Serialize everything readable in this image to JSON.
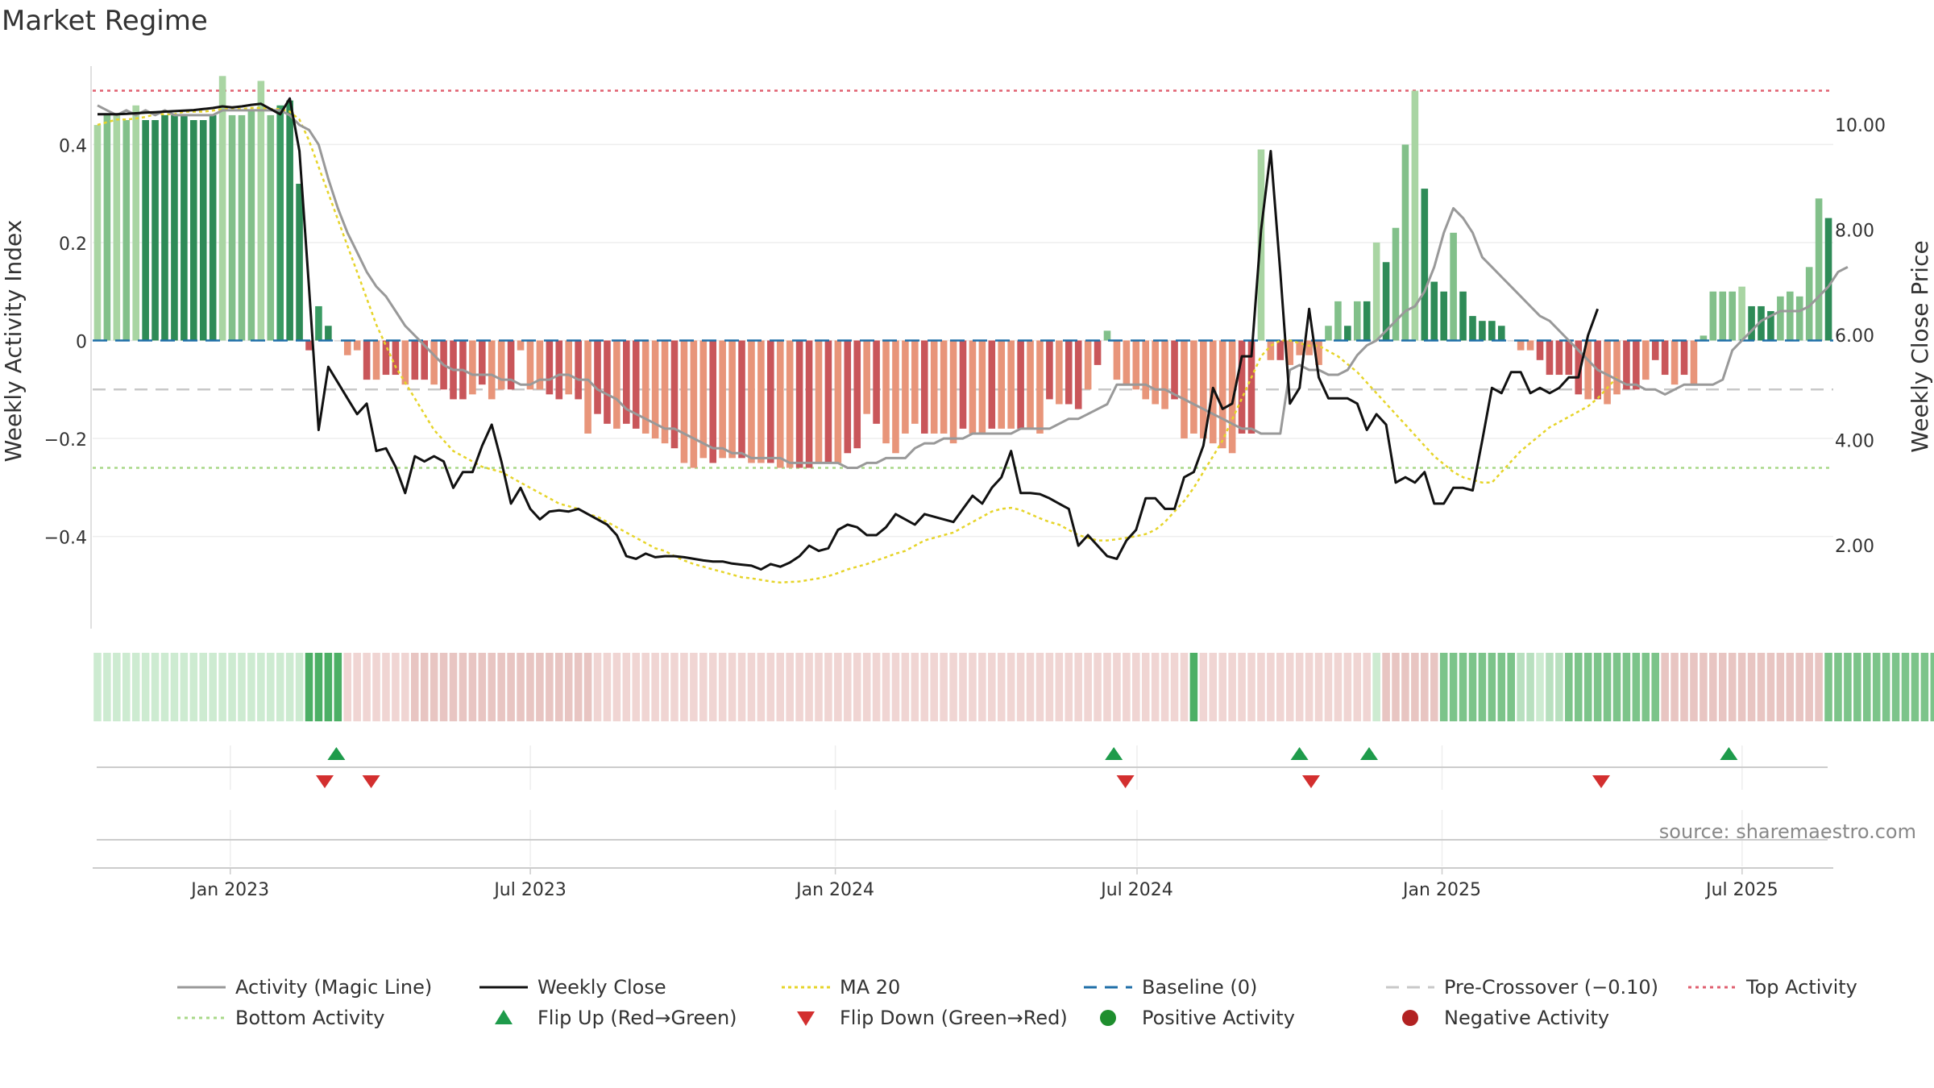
{
  "chart_data": {
    "title": "Market Regime",
    "type": "bar+line",
    "left_axis": {
      "label": "Weekly Activity Index",
      "range": [
        -0.58,
        0.58
      ],
      "ticks": [
        0.4,
        0.2,
        0,
        -0.2,
        -0.4
      ],
      "tick_labels": [
        "0.4",
        "0.2",
        "0",
        "−0.2",
        "−0.4"
      ]
    },
    "right_axis": {
      "label": "Weekly Close Price",
      "range": [
        0.5,
        11.3
      ],
      "ticks": [
        10,
        8,
        6,
        4,
        2
      ],
      "tick_labels": [
        "10.00",
        "8.00",
        "6.00",
        "4.00",
        "2.00"
      ]
    },
    "x_axis": {
      "start": "2022-10-10",
      "end": "2025-08-25",
      "ticks": [
        {
          "date": "2023-01-01",
          "label": "Jan 2023"
        },
        {
          "date": "2023-07-01",
          "label": "Jul 2023"
        },
        {
          "date": "2024-01-01",
          "label": "Jan 2024"
        },
        {
          "date": "2024-07-01",
          "label": "Jul 2024"
        },
        {
          "date": "2025-01-01",
          "label": "Jan 2025"
        },
        {
          "date": "2025-07-01",
          "label": "Jul 2025"
        }
      ]
    },
    "reference_lines": {
      "top_activity": 0.51,
      "bottom_activity": -0.26,
      "pre_crossover": -0.1,
      "baseline": 0
    },
    "activity_bars": [
      [
        0.44,
        0.46,
        0.46,
        0.45,
        0.48,
        0.45,
        0.45,
        0.46,
        0.46,
        0.46,
        0.45,
        0.45,
        0.46,
        0.54,
        0.46,
        0.46,
        0.47,
        0.53,
        0.46,
        0.48,
        0.49,
        0.32,
        -0.02,
        0.07,
        0.03,
        0,
        -0.03,
        -0.02,
        -0.08,
        -0.08,
        -0.07,
        -0.07,
        -0.09,
        -0.08,
        -0.08,
        -0.09,
        -0.1,
        -0.12,
        -0.12,
        -0.11,
        -0.09,
        -0.12,
        -0.1
      ],
      [
        -0.1,
        -0.02,
        -0.1,
        -0.1,
        -0.11,
        -0.12,
        -0.11,
        -0.12,
        -0.19,
        -0.15,
        -0.17,
        -0.18,
        -0.17,
        -0.18,
        -0.19,
        -0.2,
        -0.21,
        -0.22,
        -0.25,
        -0.26,
        -0.24,
        -0.25,
        -0.24,
        -0.24,
        -0.24,
        -0.25,
        -0.25,
        -0.25,
        -0.26,
        -0.26,
        -0.26,
        -0.26,
        -0.25,
        -0.25,
        -0.25,
        -0.23,
        -0.22,
        -0.15,
        -0.17,
        -0.21,
        -0.23,
        -0.19,
        -0.17,
        -0.19,
        -0.19,
        -0.19,
        -0.21,
        -0.18,
        -0.19,
        -0.19,
        -0.18,
        -0.18,
        -0.18,
        -0.18,
        -0.18,
        -0.19,
        -0.12,
        -0.13,
        -0.13,
        -0.14,
        -0.1,
        -0.05,
        0.02,
        -0.08,
        -0.09,
        -0.1,
        -0.12,
        -0.13,
        -0.14,
        -0.12,
        -0.2,
        -0.19,
        -0.2,
        -0.21,
        -0.22,
        -0.23,
        -0.19,
        -0.19,
        0.39
      ],
      [
        -0.04,
        -0.04,
        -0.05,
        -0.03,
        -0.03,
        -0.05,
        0.03,
        0.08,
        0.03,
        0.08,
        0.08,
        0.2,
        0.16,
        0.23,
        0.4,
        0.51,
        0.31,
        0.12,
        0.1,
        0.22,
        0.1,
        0.05,
        0.04,
        0.04,
        0.03,
        0,
        -0.02,
        -0.02,
        -0.04,
        -0.07,
        -0.07,
        -0.07,
        -0.11,
        -0.12,
        -0.12,
        -0.13,
        -0.11,
        -0.1,
        -0.1,
        -0.08,
        -0.04,
        -0.07,
        -0.09,
        -0.07,
        -0.09,
        0.01,
        0.1,
        0.1,
        0.1,
        0.11,
        0.07,
        0.07,
        0.06,
        0.09,
        0.1,
        0.09,
        0.15,
        0.29,
        0.25
      ]
    ],
    "bar_tone_classes": [
      [
        4,
        3,
        4,
        3,
        4,
        1,
        1,
        1,
        1,
        1,
        1,
        1,
        1,
        4,
        3,
        3,
        3,
        4,
        3,
        2,
        1,
        1,
        -1,
        2,
        1,
        0,
        -2,
        -2,
        -1,
        -2,
        -1,
        -1,
        -2,
        -1,
        -1,
        -2,
        -1,
        -1,
        -1,
        -2,
        -1,
        -2,
        -2
      ],
      [
        -1,
        -2,
        -2,
        -2,
        -1,
        -1,
        -2,
        -1,
        -2,
        -1,
        -1,
        -2,
        -1,
        -1,
        -2,
        -2,
        -2,
        -1,
        -2,
        -2,
        -2,
        -1,
        -2,
        -2,
        -1,
        -2,
        -2,
        -1,
        -2,
        -2,
        -1,
        -1,
        -2,
        -1,
        -2,
        -1,
        -1,
        -2,
        -1,
        -2,
        -2,
        -2,
        -2,
        -1,
        -2,
        -2,
        -2,
        -1,
        -2,
        -2,
        -1,
        -2,
        -2,
        -1,
        -2,
        -2,
        -1,
        -2,
        -1,
        -1,
        -2,
        -1,
        3,
        -2,
        -2,
        -2,
        -2,
        -2,
        -2,
        -1,
        -2,
        -2,
        -2,
        -2,
        -2,
        -2,
        -1,
        -1,
        4
      ],
      [
        -2,
        -1,
        -2,
        -2,
        -2,
        -2,
        3,
        3,
        1,
        3,
        1,
        4,
        1,
        3,
        3,
        4,
        1,
        1,
        1,
        3,
        1,
        1,
        1,
        1,
        1,
        0,
        -2,
        -2,
        -1,
        -1,
        -1,
        -1,
        -1,
        -2,
        -1,
        -2,
        -2,
        -1,
        -1,
        -2,
        -1,
        -1,
        -2,
        -1,
        -2,
        3,
        3,
        3,
        3,
        4,
        1,
        1,
        1,
        3,
        3,
        3,
        3,
        3,
        1
      ]
    ],
    "activity_line": [
      0.48,
      0.47,
      0.46,
      0.47,
      0.46,
      0.47,
      0.46,
      0.47,
      0.46,
      0.46,
      0.46,
      0.46,
      0.46,
      0.47,
      0.47,
      0.47,
      0.47,
      0.47,
      0.47,
      0.47,
      0.46,
      0.44,
      0.43,
      0.4,
      0.33,
      0.27,
      0.22,
      0.18,
      0.14,
      0.11,
      0.09,
      0.06,
      0.03,
      0.01,
      -0.01,
      -0.03,
      -0.05,
      -0.06,
      -0.06,
      -0.07,
      -0.07,
      -0.07,
      -0.08,
      -0.08,
      -0.09,
      -0.09,
      -0.08,
      -0.08,
      -0.07,
      -0.07,
      -0.08,
      -0.08,
      -0.1,
      -0.11,
      -0.12,
      -0.14,
      -0.15,
      -0.16,
      -0.17,
      -0.18,
      -0.18,
      -0.19,
      -0.2,
      -0.21,
      -0.22,
      -0.22,
      -0.23,
      -0.23,
      -0.24,
      -0.24,
      -0.24,
      -0.24,
      -0.25,
      -0.25,
      -0.25,
      -0.25,
      -0.25,
      -0.25,
      -0.26,
      -0.26,
      -0.25,
      -0.25,
      -0.24,
      -0.24,
      -0.24,
      -0.22,
      -0.21,
      -0.21,
      -0.2,
      -0.2,
      -0.2,
      -0.19,
      -0.19,
      -0.19,
      -0.19,
      -0.19,
      -0.18,
      -0.18,
      -0.18,
      -0.18,
      -0.17,
      -0.16,
      -0.16,
      -0.15,
      -0.14,
      -0.13,
      -0.09,
      -0.09,
      -0.09,
      -0.09,
      -0.1,
      -0.1,
      -0.11,
      -0.12,
      -0.13,
      -0.14,
      -0.15,
      -0.16,
      -0.17,
      -0.18,
      -0.18,
      -0.19,
      -0.19,
      -0.19,
      -0.06,
      -0.05,
      -0.06,
      -0.06,
      -0.07,
      -0.07,
      -0.06,
      -0.03,
      -0.01,
      0.0,
      0.02,
      0.04,
      0.06,
      0.07,
      0.1,
      0.15,
      0.22,
      0.27,
      0.25,
      0.22,
      0.17,
      0.15,
      0.13,
      0.11,
      0.09,
      0.07,
      0.05,
      0.04,
      0.02,
      0,
      -0.02,
      -0.04,
      -0.06,
      -0.07,
      -0.08,
      -0.09,
      -0.09,
      -0.1,
      -0.1,
      -0.11,
      -0.1,
      -0.09,
      -0.09,
      -0.09,
      -0.09,
      -0.08,
      -0.02,
      0.0,
      0.02,
      0.04,
      0.05,
      0.06,
      0.06,
      0.06,
      0.07,
      0.09,
      0.11,
      0.14,
      0.15
    ],
    "weekly_close": [
      10.2,
      10.2,
      10.2,
      10.21,
      10.22,
      10.23,
      10.24,
      10.25,
      10.26,
      10.27,
      10.28,
      10.3,
      10.32,
      10.35,
      10.33,
      10.35,
      10.38,
      10.4,
      10.3,
      10.2,
      10.5,
      9.5,
      6.9,
      4.2,
      5.4,
      5.1,
      4.8,
      4.5,
      4.7,
      3.8,
      3.85,
      3.5,
      3.0,
      3.7,
      3.6,
      3.7,
      3.6,
      3.1,
      3.4,
      3.4,
      3.9,
      4.3,
      3.6,
      2.8,
      3.1,
      2.7,
      2.5,
      2.65,
      2.67,
      2.65,
      2.7,
      2.6,
      2.5,
      2.4,
      2.2,
      1.8,
      1.75,
      1.85,
      1.78,
      1.8,
      1.8,
      1.78,
      1.75,
      1.72,
      1.7,
      1.7,
      1.66,
      1.64,
      1.62,
      1.55,
      1.65,
      1.6,
      1.68,
      1.8,
      2.0,
      1.9,
      1.95,
      2.3,
      2.4,
      2.35,
      2.2,
      2.2,
      2.35,
      2.6,
      2.5,
      2.4,
      2.6,
      2.55,
      2.5,
      2.45,
      2.7,
      2.95,
      2.8,
      3.1,
      3.3,
      3.8,
      3.0,
      3.0,
      2.98,
      2.9,
      2.8,
      2.7,
      2.0,
      2.2,
      2.0,
      1.8,
      1.75,
      2.1,
      2.3,
      2.9,
      2.9,
      2.7,
      2.7,
      3.3,
      3.4,
      3.9,
      5.0,
      4.6,
      4.7,
      5.6,
      5.6,
      8.0,
      9.5,
      7.2,
      4.7,
      5.0,
      6.5,
      5.2,
      4.8,
      4.8,
      4.8,
      4.7,
      4.2,
      4.5,
      4.3,
      3.2,
      3.3,
      3.2,
      3.4,
      2.8,
      2.8,
      3.1,
      3.1,
      3.05,
      4.0,
      5.0,
      4.9,
      5.3,
      5.3,
      4.9,
      5.0,
      4.9,
      5.0,
      5.2,
      5.2,
      6.0,
      6.5
    ],
    "ma20": [
      10.0,
      10.05,
      10.1,
      10.1,
      10.12,
      10.15,
      10.2,
      10.2,
      10.2,
      10.25,
      10.25,
      10.25,
      10.27,
      10.3,
      10.3,
      10.3,
      10.32,
      10.32,
      10.3,
      10.3,
      10.25,
      10.1,
      9.7,
      9.2,
      8.7,
      8.2,
      7.7,
      7.2,
      6.7,
      6.2,
      5.8,
      5.4,
      5.1,
      4.8,
      4.5,
      4.2,
      4.0,
      3.8,
      3.7,
      3.6,
      3.5,
      3.45,
      3.4,
      3.3,
      3.2,
      3.1,
      3.0,
      2.9,
      2.8,
      2.75,
      2.7,
      2.6,
      2.55,
      2.45,
      2.35,
      2.25,
      2.15,
      2.05,
      1.95,
      1.9,
      1.8,
      1.72,
      1.65,
      1.6,
      1.55,
      1.5,
      1.45,
      1.4,
      1.38,
      1.35,
      1.32,
      1.3,
      1.31,
      1.32,
      1.35,
      1.38,
      1.42,
      1.48,
      1.55,
      1.6,
      1.65,
      1.72,
      1.78,
      1.85,
      1.9,
      2.0,
      2.1,
      2.15,
      2.2,
      2.25,
      2.35,
      2.45,
      2.55,
      2.65,
      2.7,
      2.72,
      2.68,
      2.6,
      2.52,
      2.45,
      2.4,
      2.3,
      2.2,
      2.15,
      2.1,
      2.1,
      2.12,
      2.15,
      2.18,
      2.22,
      2.3,
      2.45,
      2.65,
      2.85,
      3.1,
      3.4,
      3.7,
      4.0,
      4.4,
      4.8,
      5.2,
      5.6,
      5.8,
      5.9,
      5.9,
      5.85,
      5.8,
      5.8,
      5.7,
      5.6,
      5.45,
      5.3,
      5.1,
      4.9,
      4.7,
      4.5,
      4.3,
      4.1,
      3.9,
      3.7,
      3.55,
      3.4,
      3.3,
      3.25,
      3.2,
      3.2,
      3.4,
      3.6,
      3.8,
      3.95,
      4.1,
      4.25,
      4.35,
      4.45,
      4.55,
      4.65,
      4.8,
      5.0,
      5.2
    ],
    "regime_strip": [
      4,
      4,
      4,
      4,
      4,
      4,
      4,
      4,
      4,
      4,
      4,
      4,
      4,
      4,
      4,
      4,
      4,
      4,
      4,
      4,
      4,
      4,
      1,
      1,
      1,
      1,
      -2,
      -2,
      -2,
      -2,
      -2,
      -2,
      -2,
      -1,
      -1,
      -1,
      -1,
      -1,
      -1,
      -1,
      -1,
      -1,
      -1,
      -1,
      -1,
      -1,
      -1,
      -1,
      -1,
      -1,
      -1,
      -1,
      -2,
      -2,
      -2,
      -2,
      -2,
      -2,
      -2,
      -2,
      -2,
      -2,
      -2,
      -2,
      -2,
      -2,
      -2,
      -2,
      -2,
      -2,
      -2,
      -2,
      -2,
      -2,
      -2,
      -2,
      -2,
      -2,
      -2,
      -2,
      -2,
      -2,
      -2,
      -2,
      -2,
      -2,
      -2,
      -2,
      -2,
      -2,
      -2,
      -2,
      -2,
      -2,
      -2,
      -2,
      -2,
      -2,
      -2,
      -2,
      -2,
      -2,
      -2,
      -2,
      -2,
      -2,
      -2,
      -2,
      -2,
      -2,
      -2,
      -2,
      -2,
      -2,
      1,
      -2,
      -2,
      -2,
      -2,
      -2,
      -2,
      -2,
      -2,
      -2,
      -2,
      -2,
      -2,
      -2,
      -2,
      -2,
      -2,
      -2,
      -2,
      4,
      -1,
      -1,
      -1,
      -1,
      -1,
      -1,
      2,
      2,
      2,
      2,
      2,
      2,
      2,
      2,
      3,
      3,
      4,
      3,
      3,
      2,
      2,
      2,
      2,
      2,
      2,
      2,
      2,
      2,
      2,
      -1,
      -1,
      -1,
      -1,
      -1,
      -1,
      -1,
      -1,
      -1,
      -1,
      -1,
      -1,
      -1,
      -1,
      -1,
      -1,
      -1,
      2,
      2,
      2,
      2,
      2,
      2,
      2,
      2,
      2,
      2,
      2,
      2,
      3
    ],
    "flip_up": [
      "2023-03-06",
      "2024-06-17",
      "2024-10-07",
      "2024-11-18",
      "2025-06-23"
    ],
    "flip_down": [
      "2023-02-27",
      "2023-03-27",
      "2024-06-24",
      "2024-10-14",
      "2025-04-07"
    ],
    "source": "source: sharemaestro.com",
    "legend": [
      "Activity (Magic Line)",
      "Weekly Close",
      "MA 20",
      "Baseline (0)",
      "Pre-Crossover (−0.10)",
      "Top Activity",
      "Bottom Activity",
      "Flip Up (Red→Green)",
      "Flip Down (Green→Red)",
      "Positive Activity",
      "Negative Activity"
    ],
    "legend_placement": "bottom"
  },
  "colors": {
    "bar_green": [
      "#2e8b57",
      "#3a9b63",
      "#82c08a",
      "#a9d5a3"
    ],
    "bar_red": [
      "#c9565a",
      "#e8957a"
    ],
    "strip_green": [
      "#4caf65",
      "#7cc48a",
      "#b8e0bf",
      "#cdebd1"
    ],
    "strip_red": [
      "#e8c5c2",
      "#f0d5d3"
    ],
    "magic_line": "#999999",
    "close": "#111111",
    "ma20": "#e6d42a",
    "baseline": "#1f6fa8",
    "pre_crossover": "#c8c8c8",
    "top": "#e06070",
    "bottom": "#a8d888",
    "flip_up": "#1e9b4b",
    "flip_down": "#d32f2f",
    "positive": "#1e8e2e",
    "negative": "#b22222"
  }
}
